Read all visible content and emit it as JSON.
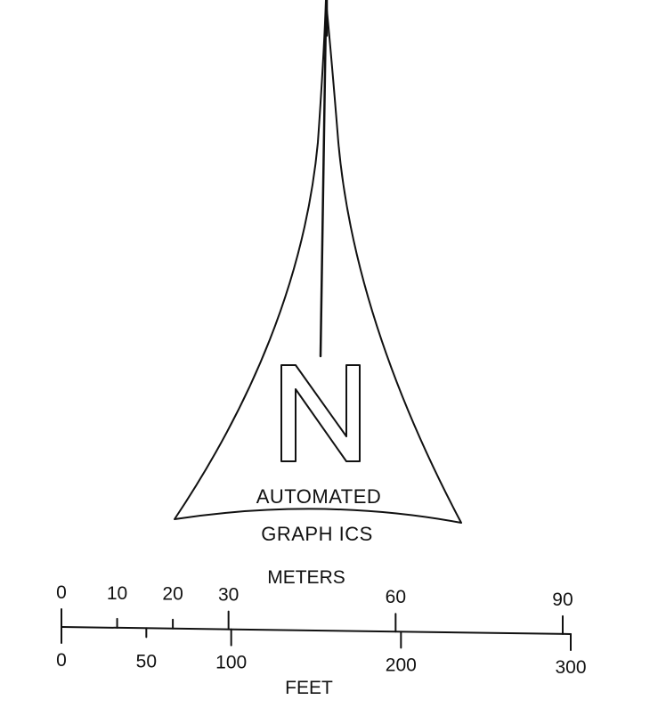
{
  "north_arrow": {
    "letter": "N",
    "brand_line_1": "AUTOMATED",
    "brand_line_2": "GRAPH ICS"
  },
  "scale_bar": {
    "meters_title": "METERS",
    "feet_title": "FEET",
    "meter_ticks": [
      {
        "value": 0,
        "label": "0"
      },
      {
        "value": 10,
        "label": "10"
      },
      {
        "value": 20,
        "label": "20"
      },
      {
        "value": 30,
        "label": "30"
      },
      {
        "value": 60,
        "label": "60"
      },
      {
        "value": 90,
        "label": "90"
      }
    ],
    "feet_ticks": [
      {
        "value": 0,
        "label": "0"
      },
      {
        "value": 50,
        "label": "50"
      },
      {
        "value": 100,
        "label": "100"
      },
      {
        "value": 200,
        "label": "200"
      },
      {
        "value": 300,
        "label": "300"
      }
    ]
  },
  "colors": {
    "ink": "#111111",
    "paper": "#ffffff"
  }
}
